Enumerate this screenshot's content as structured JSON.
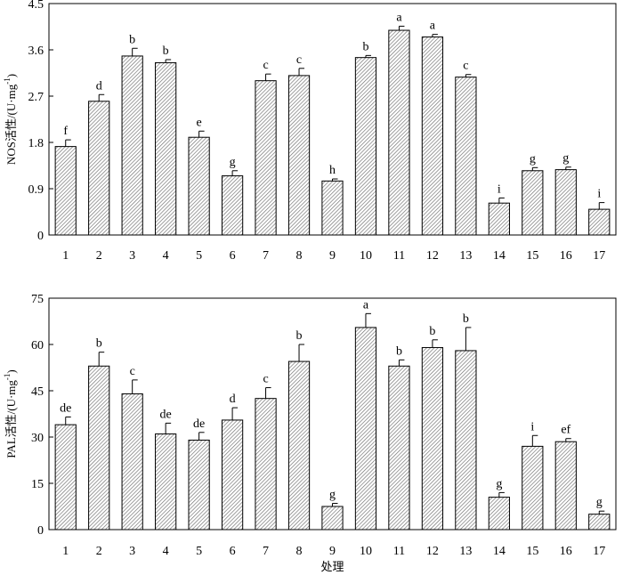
{
  "chart_data": [
    {
      "type": "bar",
      "title": "",
      "xlabel": "",
      "ylabel": "NOS活性/(U·mg",
      "ylabel_sup": "-1",
      "ylabel_close": ")",
      "ylim": [
        0,
        4.5
      ],
      "yticks": [
        "0",
        "0.9",
        "1.8",
        "2.7",
        "3.6",
        "4.5"
      ],
      "categories": [
        "1",
        "2",
        "3",
        "4",
        "5",
        "6",
        "7",
        "8",
        "9",
        "10",
        "11",
        "12",
        "13",
        "14",
        "15",
        "16",
        "17"
      ],
      "values": [
        1.72,
        2.6,
        3.48,
        3.35,
        1.9,
        1.15,
        3.0,
        3.1,
        1.05,
        3.45,
        3.98,
        3.85,
        3.07,
        0.62,
        1.25,
        1.27,
        0.5
      ],
      "errors": [
        0.13,
        0.13,
        0.15,
        0.06,
        0.12,
        0.1,
        0.13,
        0.14,
        0.04,
        0.04,
        0.08,
        0.05,
        0.05,
        0.1,
        0.06,
        0.05,
        0.13
      ],
      "letters": [
        "f",
        "d",
        "b",
        "b",
        "e",
        "g",
        "c",
        "c",
        "h",
        "b",
        "a",
        "a",
        "c",
        "i",
        "g",
        "g",
        "i"
      ]
    },
    {
      "type": "bar",
      "title": "",
      "xlabel": "处理",
      "ylabel": "PAL活性/(U·mg",
      "ylabel_sup": "-1",
      "ylabel_close": ")",
      "ylim": [
        0,
        75
      ],
      "yticks": [
        "0",
        "15",
        "30",
        "45",
        "60",
        "75"
      ],
      "categories": [
        "1",
        "2",
        "3",
        "4",
        "5",
        "6",
        "7",
        "8",
        "9",
        "10",
        "11",
        "12",
        "13",
        "14",
        "15",
        "16",
        "17"
      ],
      "values": [
        34,
        53,
        44,
        31,
        29,
        35.5,
        42.5,
        54.5,
        7.5,
        65.5,
        53,
        59,
        58,
        10.5,
        27,
        28.5,
        5
      ],
      "errors": [
        2.5,
        4.5,
        4.5,
        3.5,
        2.5,
        4,
        3.5,
        5.5,
        1,
        4.5,
        2,
        2.5,
        7.5,
        1.5,
        3.5,
        1,
        1
      ],
      "letters": [
        "de",
        "b",
        "c",
        "de",
        "de",
        "d",
        "c",
        "b",
        "g",
        "a",
        "b",
        "b",
        "b",
        "g",
        "i",
        "ef",
        "g"
      ]
    }
  ]
}
